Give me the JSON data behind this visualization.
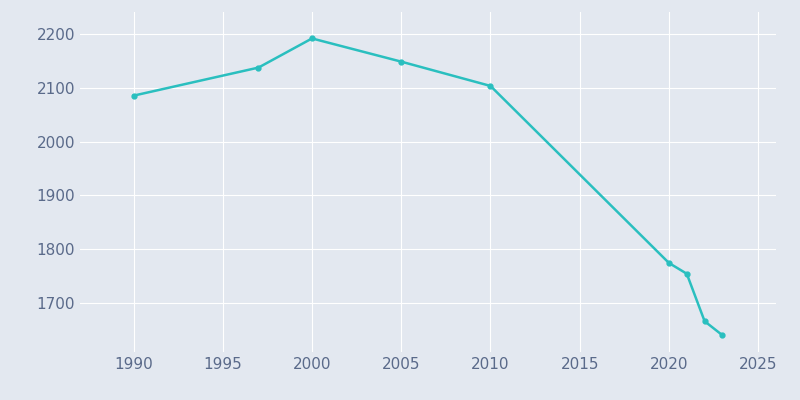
{
  "years": [
    1990,
    1997,
    2000,
    2005,
    2010,
    2020,
    2021,
    2022,
    2023
  ],
  "population": [
    2085,
    2137,
    2191,
    2148,
    2103,
    1775,
    1755,
    1667,
    1641
  ],
  "line_color": "#2abfbf",
  "marker": "o",
  "marker_size": 3.5,
  "linewidth": 1.8,
  "background_color": "#e3e8f0",
  "grid_color": "#ffffff",
  "xlim": [
    1987,
    2026
  ],
  "ylim": [
    1610,
    2240
  ],
  "xticks": [
    1990,
    1995,
    2000,
    2005,
    2010,
    2015,
    2020,
    2025
  ],
  "yticks": [
    1700,
    1800,
    1900,
    2000,
    2100,
    2200
  ],
  "tick_label_color": "#5a6a8a",
  "tick_fontsize": 11,
  "figsize": [
    8.0,
    4.0
  ],
  "dpi": 100
}
